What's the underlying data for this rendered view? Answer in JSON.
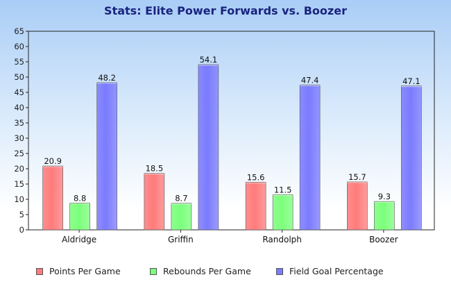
{
  "chart_data": {
    "type": "bar",
    "title": "Stats: Elite Power Forwards vs. Boozer",
    "categories": [
      "Aldridge",
      "Griffin",
      "Randolph",
      "Boozer"
    ],
    "series": [
      {
        "name": "Points Per Game",
        "color": "#ff7b7b",
        "values": [
          20.9,
          18.5,
          15.6,
          15.7
        ]
      },
      {
        "name": "Rebounds Per Game",
        "color": "#7bff7b",
        "values": [
          8.8,
          8.7,
          11.5,
          9.3
        ]
      },
      {
        "name": "Field Goal Percentage",
        "color": "#7b7bff",
        "values": [
          48.2,
          54.1,
          47.4,
          47.1
        ]
      }
    ],
    "xlabel": "",
    "ylabel": "",
    "ylim": [
      0,
      65
    ],
    "ytick_step": 5,
    "grid": false,
    "legend_position": "bottom"
  }
}
